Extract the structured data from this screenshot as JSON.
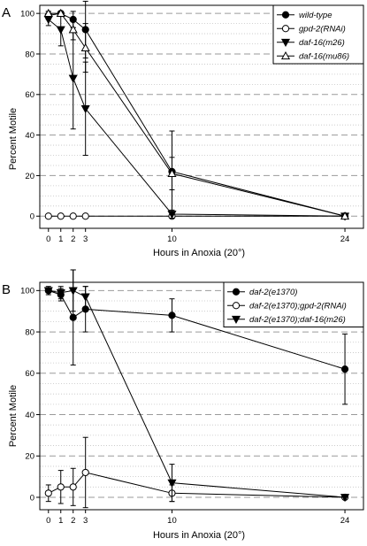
{
  "chart_data": [
    {
      "type": "line",
      "panel_label": "A",
      "xlabel": "Hours in Anoxia (20°)",
      "ylabel": "Percent Motile",
      "x": [
        0,
        1,
        2,
        3,
        10,
        24
      ],
      "x_tick_labels": [
        "0",
        "1",
        "2",
        "3",
        "10",
        "24"
      ],
      "xlim": [
        -0.7,
        25.5
      ],
      "ylim": [
        -6,
        104
      ],
      "y_ticks": [
        0,
        20,
        40,
        60,
        80,
        100
      ],
      "grid": "horizontal dotted minor, dashed major",
      "legend_position": "top-right",
      "series": [
        {
          "name": "wild-type",
          "marker": "circle-filled",
          "color": "#000000",
          "values": [
            99,
            100,
            97,
            92,
            22,
            0
          ],
          "errors": [
            2,
            1,
            4,
            14,
            20,
            0
          ]
        },
        {
          "name": "gpd-2(RNAi)",
          "marker": "circle-open",
          "color": "#000000",
          "values": [
            0,
            0,
            0,
            0,
            0,
            0
          ],
          "errors": [
            0,
            0,
            0,
            0,
            0,
            0
          ]
        },
        {
          "name": "daf-16(m26)",
          "marker": "triangle-down-filled",
          "color": "#000000",
          "values": [
            97,
            92,
            68,
            53,
            1,
            0
          ],
          "errors": [
            3,
            8,
            25,
            23,
            2,
            0
          ]
        },
        {
          "name": "daf-16(mu86)",
          "marker": "triangle-up-open",
          "color": "#000000",
          "values": [
            100,
            100,
            92,
            83,
            21,
            0
          ],
          "errors": [
            1,
            1,
            5,
            12,
            8,
            0
          ]
        }
      ]
    },
    {
      "type": "line",
      "panel_label": "B",
      "xlabel": "Hours in Anoxia (20°)",
      "ylabel": "Percent Motile",
      "x": [
        0,
        1,
        2,
        3,
        10,
        24
      ],
      "x_tick_labels": [
        "0",
        "1",
        "2",
        "3",
        "10",
        "24"
      ],
      "xlim": [
        -0.7,
        25.5
      ],
      "ylim": [
        -6,
        104
      ],
      "y_ticks": [
        0,
        20,
        40,
        60,
        80,
        100
      ],
      "grid": "horizontal dotted minor, dashed major",
      "legend_position": "top-right",
      "series": [
        {
          "name": "daf-2(e1370)",
          "marker": "circle-filled",
          "color": "#000000",
          "values": [
            100,
            98,
            87,
            91,
            88,
            62
          ],
          "errors": [
            2,
            3,
            23,
            11,
            8,
            17
          ]
        },
        {
          "name": "daf-2(e1370);gpd-2(RNAi)",
          "marker": "circle-open",
          "color": "#000000",
          "values": [
            2,
            5,
            5,
            12,
            2,
            0
          ],
          "errors": [
            4,
            8,
            9,
            17,
            4,
            0
          ]
        },
        {
          "name": "daf-2(e1370);daf-16(m26)",
          "marker": "triangle-down-filled",
          "color": "#000000",
          "values": [
            100,
            99,
            100,
            97,
            7,
            0
          ],
          "errors": [
            1,
            3,
            10,
            5,
            9,
            0
          ]
        }
      ]
    }
  ]
}
